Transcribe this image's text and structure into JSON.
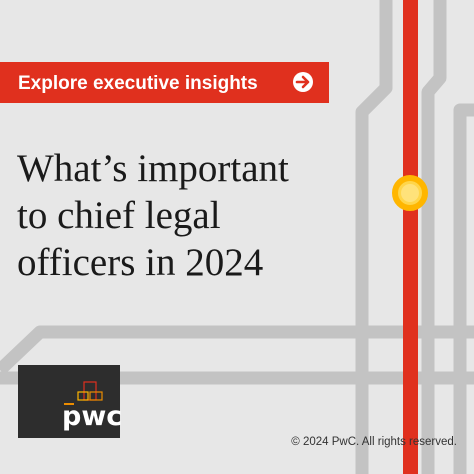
{
  "banner": {
    "label": "Explore executive insights"
  },
  "headline": {
    "lines": [
      "What’s important",
      "to chief legal",
      "officers in 2024"
    ]
  },
  "logo": {
    "text": "pwc"
  },
  "footer": {
    "copyright": "© 2024 PwC. All rights reserved."
  }
}
